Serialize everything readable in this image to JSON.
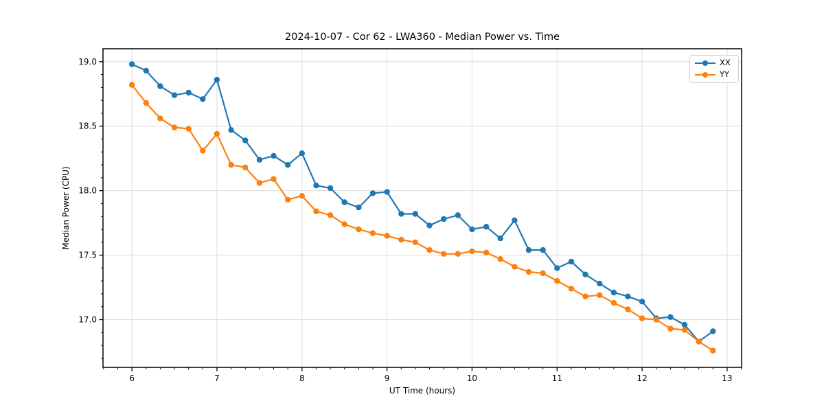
{
  "chart_data": {
    "type": "line",
    "title": "2024-10-07 - Cor 62 - LWA360 - Median Power vs. Time",
    "xlabel": "UT Time (hours)",
    "ylabel": "Median Power (CPU)",
    "xlim": [
      5.66,
      13.17
    ],
    "ylim": [
      16.63,
      19.1
    ],
    "grid": true,
    "legend_position": "upper right",
    "marker": "circle",
    "xticks": {
      "values": [
        6,
        7,
        8,
        9,
        10,
        11,
        12,
        13
      ],
      "labels": [
        "6",
        "7",
        "8",
        "9",
        "10",
        "11",
        "12",
        "13"
      ]
    },
    "yticks": {
      "values": [
        17.0,
        17.5,
        18.0,
        18.5,
        19.0
      ],
      "labels": [
        "17.0",
        "17.5",
        "18.0",
        "18.5",
        "19.0"
      ]
    },
    "minor_xtick_step": 0.166667,
    "minor_ytick_step": 0.1,
    "x": [
      6.0,
      6.167,
      6.333,
      6.5,
      6.667,
      6.833,
      7.0,
      7.167,
      7.333,
      7.5,
      7.667,
      7.833,
      8.0,
      8.167,
      8.333,
      8.5,
      8.667,
      8.833,
      9.0,
      9.167,
      9.333,
      9.5,
      9.667,
      9.833,
      10.0,
      10.167,
      10.333,
      10.5,
      10.667,
      10.833,
      11.0,
      11.167,
      11.333,
      11.5,
      11.667,
      11.833,
      12.0,
      12.167,
      12.333,
      12.5,
      12.667,
      12.833
    ],
    "series": [
      {
        "name": "XX",
        "color": "#1f77b4",
        "values": [
          18.98,
          18.93,
          18.81,
          18.74,
          18.76,
          18.71,
          18.86,
          18.47,
          18.39,
          18.24,
          18.27,
          18.2,
          18.29,
          18.04,
          18.02,
          17.91,
          17.87,
          17.98,
          17.99,
          17.82,
          17.82,
          17.73,
          17.78,
          17.81,
          17.7,
          17.72,
          17.63,
          17.77,
          17.54,
          17.54,
          17.4,
          17.45,
          17.35,
          17.28,
          17.21,
          17.18,
          17.14,
          17.01,
          17.02,
          16.96,
          16.83,
          16.91
        ]
      },
      {
        "name": "YY",
        "color": "#ff7f0e",
        "values": [
          18.82,
          18.68,
          18.56,
          18.49,
          18.48,
          18.31,
          18.44,
          18.2,
          18.18,
          18.06,
          18.09,
          17.93,
          17.96,
          17.84,
          17.81,
          17.74,
          17.7,
          17.67,
          17.65,
          17.62,
          17.6,
          17.54,
          17.51,
          17.51,
          17.53,
          17.52,
          17.47,
          17.41,
          17.37,
          17.36,
          17.3,
          17.24,
          17.18,
          17.19,
          17.13,
          17.08,
          17.01,
          17.0,
          16.93,
          16.92,
          16.83,
          16.76
        ]
      }
    ],
    "style": {
      "grid_color": "#dcdcdc",
      "spine_color": "#000000",
      "tick_color": "#000000",
      "background": "#ffffff"
    }
  }
}
